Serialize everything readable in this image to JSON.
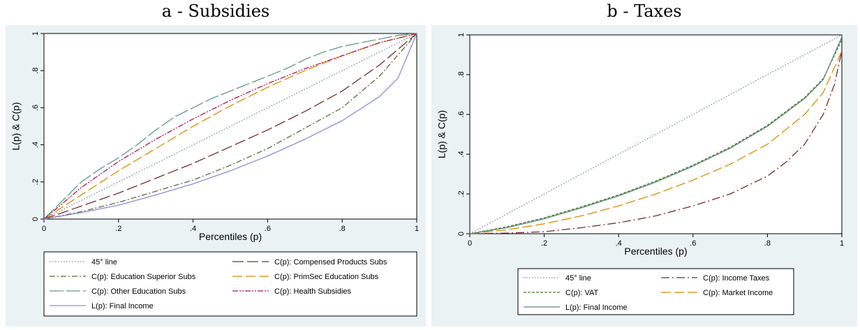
{
  "chart_data": [
    {
      "type": "line",
      "title": "a - Subsidies",
      "xlabel": "Percentiles (p)",
      "ylabel": "L(p) & C(p)",
      "xlim": [
        0,
        1
      ],
      "ylim": [
        0,
        1
      ],
      "x_ticks": [
        "0",
        ".2",
        ".4",
        ".6",
        ".8",
        "1"
      ],
      "y_ticks": [
        "0",
        ".2",
        ".4",
        ".6",
        ".8",
        "1"
      ],
      "grid": false,
      "legend_position": "bottom",
      "legend_columns": 2,
      "series": [
        {
          "name": "45° line",
          "color": "#6f8a9c",
          "dash": "1.5 2.5",
          "x": [
            0,
            1
          ],
          "y": [
            0,
            1
          ]
        },
        {
          "name": "C(p): Compensed Products Subs",
          "color": "#7a2a2a",
          "dash": "16 5",
          "x": [
            0,
            0.1,
            0.2,
            0.3,
            0.4,
            0.5,
            0.6,
            0.7,
            0.8,
            0.9,
            1
          ],
          "y": [
            0,
            0.07,
            0.14,
            0.22,
            0.3,
            0.39,
            0.48,
            0.58,
            0.69,
            0.83,
            1
          ]
        },
        {
          "name": "C(p): Education Superior Subs",
          "color": "#5a6b3a",
          "dash": "8 3 2 3",
          "x": [
            0,
            0.1,
            0.2,
            0.3,
            0.4,
            0.5,
            0.6,
            0.7,
            0.8,
            0.9,
            1
          ],
          "y": [
            0,
            0.04,
            0.09,
            0.15,
            0.21,
            0.29,
            0.38,
            0.49,
            0.6,
            0.77,
            1
          ]
        },
        {
          "name": "C(p): PrimSec Education Subs",
          "color": "#e08a00",
          "dash": "14 5",
          "x": [
            0,
            0.1,
            0.2,
            0.3,
            0.4,
            0.5,
            0.6,
            0.7,
            0.8,
            0.9,
            1
          ],
          "y": [
            0,
            0.13,
            0.26,
            0.38,
            0.5,
            0.61,
            0.71,
            0.8,
            0.88,
            0.95,
            1
          ]
        },
        {
          "name": "C(p): Other Education Subs",
          "color": "#5f9a8a",
          "dash": "20 4",
          "x": [
            0,
            0.05,
            0.1,
            0.15,
            0.2,
            0.25,
            0.3,
            0.35,
            0.4,
            0.45,
            0.5,
            0.55,
            0.6,
            0.65,
            0.7,
            0.75,
            0.8,
            0.85,
            0.9,
            0.95,
            1
          ],
          "y": [
            0,
            0.1,
            0.2,
            0.27,
            0.33,
            0.4,
            0.48,
            0.55,
            0.6,
            0.65,
            0.69,
            0.73,
            0.77,
            0.81,
            0.86,
            0.9,
            0.93,
            0.95,
            0.97,
            0.99,
            1
          ]
        },
        {
          "name": "C(p): Health Subsidies",
          "color": "#b5164a",
          "dash": "8 2 2 2 2 2",
          "x": [
            0,
            0.1,
            0.2,
            0.3,
            0.4,
            0.5,
            0.6,
            0.7,
            0.8,
            0.9,
            1
          ],
          "y": [
            0,
            0.17,
            0.31,
            0.43,
            0.54,
            0.64,
            0.73,
            0.81,
            0.88,
            0.95,
            1
          ]
        },
        {
          "name": "L(p): Final Income",
          "color": "#8c8ce0",
          "dash": "",
          "x": [
            0,
            0.1,
            0.2,
            0.3,
            0.4,
            0.5,
            0.6,
            0.7,
            0.8,
            0.9,
            0.95,
            1
          ],
          "y": [
            0,
            0.035,
            0.075,
            0.13,
            0.19,
            0.26,
            0.34,
            0.43,
            0.53,
            0.66,
            0.76,
            1
          ]
        }
      ]
    },
    {
      "type": "line",
      "title": "b - Taxes",
      "xlabel": "Percentiles (p)",
      "ylabel": "L(p) & C(p)",
      "xlim": [
        0,
        1
      ],
      "ylim": [
        0,
        1
      ],
      "x_ticks": [
        "0",
        ".2",
        ".4",
        ".6",
        ".8",
        "1"
      ],
      "y_ticks": [
        "0",
        ".2",
        ".4",
        ".6",
        ".8",
        "1"
      ],
      "grid": false,
      "legend_position": "bottom",
      "legend_columns": 2,
      "series": [
        {
          "name": "45° line",
          "color": "#6f8a9c",
          "dash": "1.5 2.5",
          "x": [
            0,
            1
          ],
          "y": [
            0,
            1
          ]
        },
        {
          "name": "C(p): Income Taxes",
          "color": "#7a2a2a",
          "dash": "12 4 2 4",
          "x": [
            0,
            0.1,
            0.2,
            0.3,
            0.4,
            0.5,
            0.6,
            0.7,
            0.8,
            0.85,
            0.9,
            0.95,
            0.98,
            1
          ],
          "y": [
            0,
            0.003,
            0.01,
            0.03,
            0.055,
            0.09,
            0.14,
            0.2,
            0.29,
            0.36,
            0.45,
            0.6,
            0.75,
            0.92
          ]
        },
        {
          "name": "C(p): VAT",
          "color": "#4a7a2a",
          "dash": "4 2",
          "x": [
            0,
            0.1,
            0.2,
            0.3,
            0.4,
            0.5,
            0.6,
            0.7,
            0.8,
            0.9,
            0.95,
            1
          ],
          "y": [
            0,
            0.035,
            0.08,
            0.135,
            0.195,
            0.265,
            0.345,
            0.435,
            0.545,
            0.685,
            0.78,
            0.975
          ]
        },
        {
          "name": "C(p): Market Income",
          "color": "#e08a00",
          "dash": "14 5",
          "x": [
            0,
            0.1,
            0.2,
            0.3,
            0.4,
            0.5,
            0.6,
            0.7,
            0.8,
            0.9,
            0.95,
            1
          ],
          "y": [
            0,
            0.02,
            0.05,
            0.09,
            0.14,
            0.2,
            0.27,
            0.35,
            0.45,
            0.6,
            0.71,
            0.92
          ]
        },
        {
          "name": "L(p): Final Income",
          "color": "#5f8a7a",
          "dash": "",
          "x": [
            0,
            0.1,
            0.2,
            0.3,
            0.4,
            0.5,
            0.6,
            0.7,
            0.8,
            0.9,
            0.95,
            1
          ],
          "y": [
            0,
            0.03,
            0.075,
            0.13,
            0.19,
            0.26,
            0.34,
            0.43,
            0.54,
            0.68,
            0.775,
            0.99
          ]
        }
      ]
    }
  ]
}
